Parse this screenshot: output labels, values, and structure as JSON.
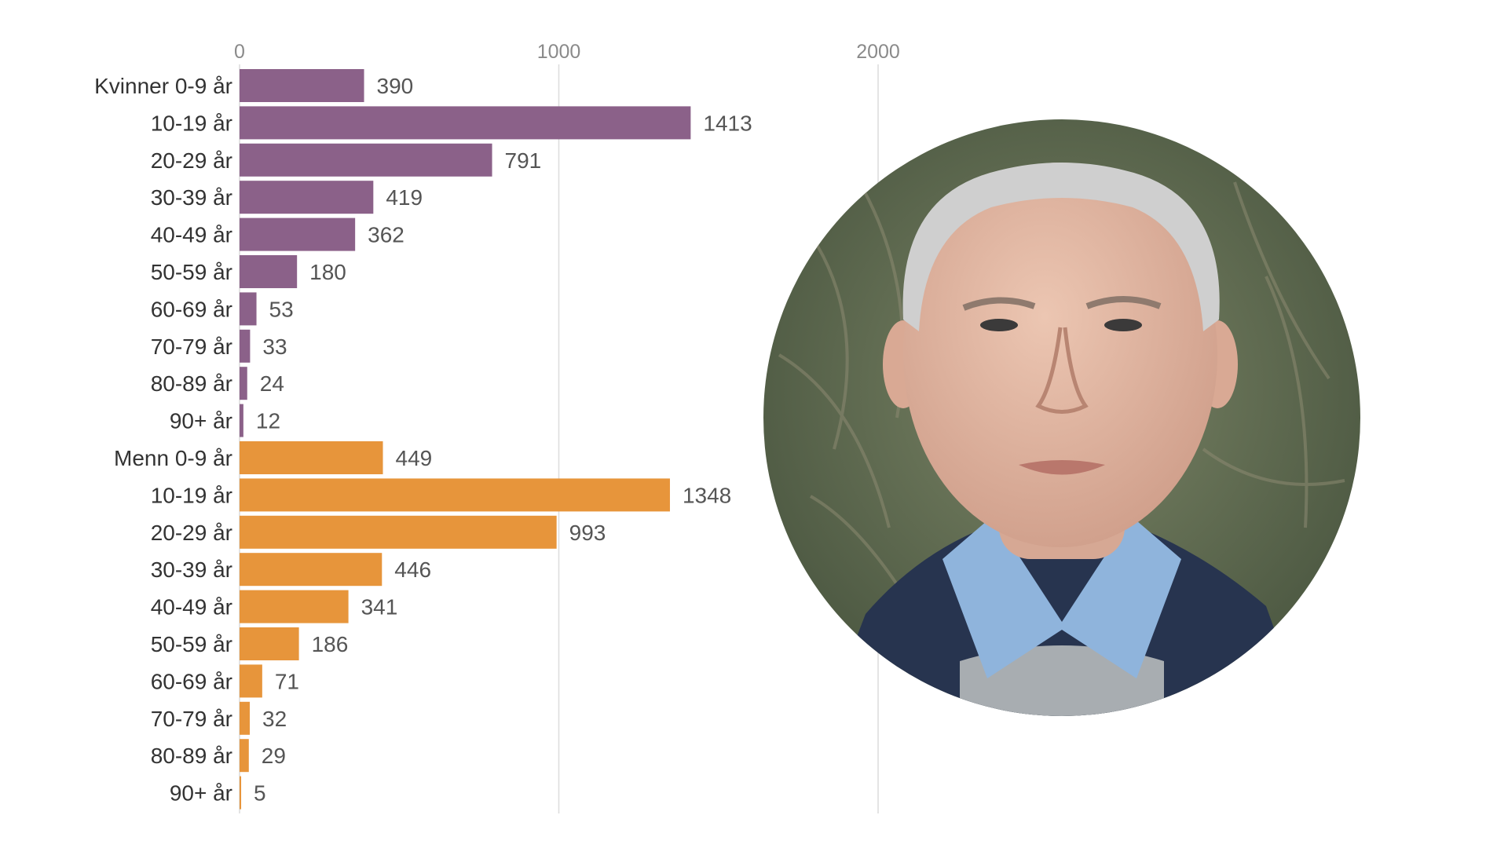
{
  "chart_data": {
    "type": "bar",
    "orientation": "horizontal",
    "xlim": [
      0,
      2000
    ],
    "xticks": [
      0,
      1000,
      2000
    ],
    "grid": true,
    "categories": [
      "Kvinner 0-9 år",
      "10-19 år",
      "20-29 år",
      "30-39 år",
      "40-49 år",
      "50-59 år",
      "60-69 år",
      "70-79 år",
      "80-89 år",
      "90+ år",
      "Menn 0-9 år",
      "10-19 år",
      "20-29 år",
      "30-39 år",
      "40-49 år",
      "50-59 år",
      "60-69 år",
      "70-79 år",
      "80-89 år",
      "90+ år"
    ],
    "values": [
      390,
      1413,
      791,
      419,
      362,
      180,
      53,
      33,
      24,
      12,
      449,
      1348,
      993,
      446,
      341,
      186,
      71,
      32,
      29,
      5
    ],
    "groups": [
      {
        "name": "Kvinner",
        "color": "#8b6189",
        "count": 10
      },
      {
        "name": "Menn",
        "color": "#e7953b",
        "count": 10
      }
    ]
  },
  "portrait": {
    "icon": "person-photo",
    "colors": {
      "background": "#5d6a4c",
      "skin": "#e3b9a3",
      "hair": "#cfcfcf",
      "jacket": "#27344f",
      "shirt": "#8fb4dc",
      "sweater": "#a8adb1"
    }
  }
}
